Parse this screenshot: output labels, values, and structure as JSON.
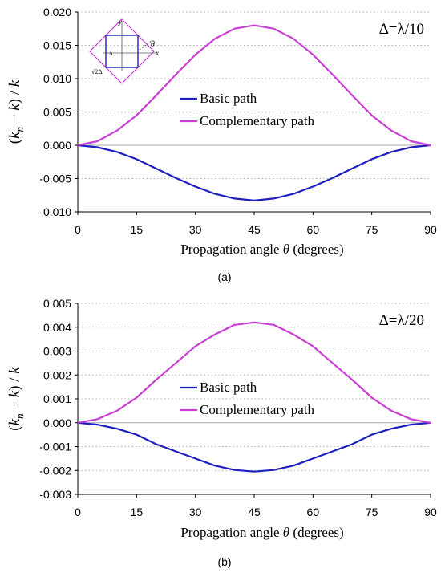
{
  "chart_data": [
    {
      "type": "line",
      "panel_label": "(a)",
      "annotation": "Δ=λ/10",
      "xlabel": "Propagation angle θ (degrees)",
      "ylabel": "(k_n − k)/k",
      "xlim": [
        0,
        90
      ],
      "ylim": [
        -0.01,
        0.02
      ],
      "x_ticks": [
        "0",
        "15",
        "30",
        "45",
        "60",
        "75",
        "90"
      ],
      "y_ticks": [
        "-0.010",
        "-0.005",
        "0.000",
        "0.005",
        "0.010",
        "0.015",
        "0.020"
      ],
      "grid": "horizontal-dotted",
      "legend_position": "center",
      "x": [
        0,
        5,
        10,
        15,
        20,
        25,
        30,
        35,
        40,
        45,
        50,
        55,
        60,
        65,
        70,
        75,
        80,
        85,
        90
      ],
      "series": [
        {
          "name": "Basic path",
          "color": "#1f1fbf",
          "values": [
            0,
            -0.0003,
            -0.001,
            -0.0021,
            -0.0035,
            -0.0049,
            -0.0062,
            -0.0073,
            -0.008,
            -0.0083,
            -0.008,
            -0.0073,
            -0.0062,
            -0.0049,
            -0.0035,
            -0.0021,
            -0.001,
            -0.0003,
            0
          ]
        },
        {
          "name": "Complementary path",
          "color": "#c93fd3",
          "values": [
            0,
            0.0006,
            0.0022,
            0.0045,
            0.0075,
            0.0106,
            0.0136,
            0.016,
            0.0175,
            0.018,
            0.0175,
            0.016,
            0.0136,
            0.0106,
            0.0075,
            0.0045,
            0.0022,
            0.0006,
            0
          ]
        }
      ],
      "inset": {
        "labels": [
          "y",
          "θ",
          "x",
          "Δ",
          "√2Δ"
        ]
      }
    },
    {
      "type": "line",
      "panel_label": "(b)",
      "annotation": "Δ=λ/20",
      "xlabel": "Propagation angle θ (degrees)",
      "ylabel": "(k_n − k)/k",
      "xlim": [
        0,
        90
      ],
      "ylim": [
        -0.003,
        0.005
      ],
      "x_ticks": [
        "0",
        "15",
        "30",
        "45",
        "60",
        "75",
        "90"
      ],
      "y_ticks": [
        "-0.003",
        "-0.002",
        "-0.001",
        "0.000",
        "0.001",
        "0.002",
        "0.003",
        "0.004",
        "0.005"
      ],
      "grid": "horizontal-dotted",
      "legend_position": "center",
      "x": [
        0,
        5,
        10,
        15,
        20,
        25,
        30,
        35,
        40,
        45,
        50,
        55,
        60,
        65,
        70,
        75,
        80,
        85,
        90
      ],
      "series": [
        {
          "name": "Basic path",
          "color": "#1f1fbf",
          "values": [
            0,
            -8e-05,
            -0.00025,
            -0.0005,
            -0.0009,
            -0.0012,
            -0.0015,
            -0.0018,
            -0.00198,
            -0.00205,
            -0.00198,
            -0.0018,
            -0.0015,
            -0.0012,
            -0.0009,
            -0.0005,
            -0.00025,
            -8e-05,
            0
          ]
        },
        {
          "name": "Complementary path",
          "color": "#c93fd3",
          "values": [
            0,
            0.00015,
            0.0005,
            0.00105,
            0.0018,
            0.0025,
            0.0032,
            0.0037,
            0.0041,
            0.0042,
            0.0041,
            0.0037,
            0.0032,
            0.0025,
            0.0018,
            0.00105,
            0.0005,
            0.00015,
            0
          ]
        }
      ]
    }
  ]
}
